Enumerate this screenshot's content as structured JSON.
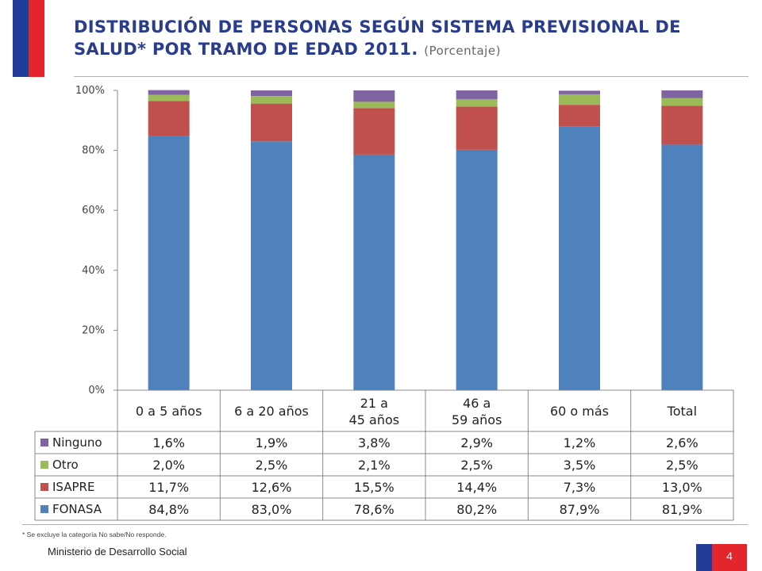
{
  "header": {
    "title": "DISTRIBUCIÓN DE PERSONAS SEGÚN SISTEMA PREVISIONAL DE SALUD* POR TRAMO DE EDAD 2011.",
    "subtitle": "(Porcentaje)"
  },
  "colors": {
    "flag_blue": "#1f3d99",
    "flag_red": "#e2262b",
    "title_blue": "#2a3d8c"
  },
  "chart_data": {
    "type": "bar",
    "stacked": true,
    "categories": [
      "0 a 5 años",
      "6 a 20 años",
      "21 a 45 años",
      "46 a 59 años",
      "60 o más",
      "Total"
    ],
    "series": [
      {
        "name": "FONASA",
        "color": "#4f81bd",
        "values": [
          84.8,
          83.0,
          78.6,
          80.2,
          87.9,
          81.9
        ],
        "labels": [
          "84,8%",
          "83,0%",
          "78,6%",
          "80,2%",
          "87,9%",
          "81,9%"
        ]
      },
      {
        "name": "ISAPRE",
        "color": "#c0504d",
        "values": [
          11.7,
          12.6,
          15.5,
          14.4,
          7.3,
          13.0
        ],
        "labels": [
          "11,7%",
          "12,6%",
          "15,5%",
          "14,4%",
          "7,3%",
          "13,0%"
        ]
      },
      {
        "name": "Otro",
        "color": "#9bbb59",
        "values": [
          2.0,
          2.5,
          2.1,
          2.5,
          3.5,
          2.5
        ],
        "labels": [
          "2,0%",
          "2,5%",
          "2,1%",
          "2,5%",
          "3,5%",
          "2,5%"
        ]
      },
      {
        "name": "Ninguno",
        "color": "#8064a2",
        "values": [
          1.6,
          1.9,
          3.8,
          2.9,
          1.2,
          2.6
        ],
        "labels": [
          "1,6%",
          "1,9%",
          "3,8%",
          "2,9%",
          "1,2%",
          "2,6%"
        ]
      }
    ],
    "table_order": [
      "Ninguno",
      "Otro",
      "ISAPRE",
      "FONASA"
    ],
    "ylim": [
      0,
      100
    ],
    "yticks": [
      "0%",
      "20%",
      "40%",
      "60%",
      "80%",
      "100%"
    ],
    "grid": false,
    "legend": "data-table"
  },
  "footer": {
    "note": "* Se excluye la categoría No sabe/No responde.",
    "ministry": "Ministerio de Desarrollo Social",
    "page_number": "4"
  }
}
